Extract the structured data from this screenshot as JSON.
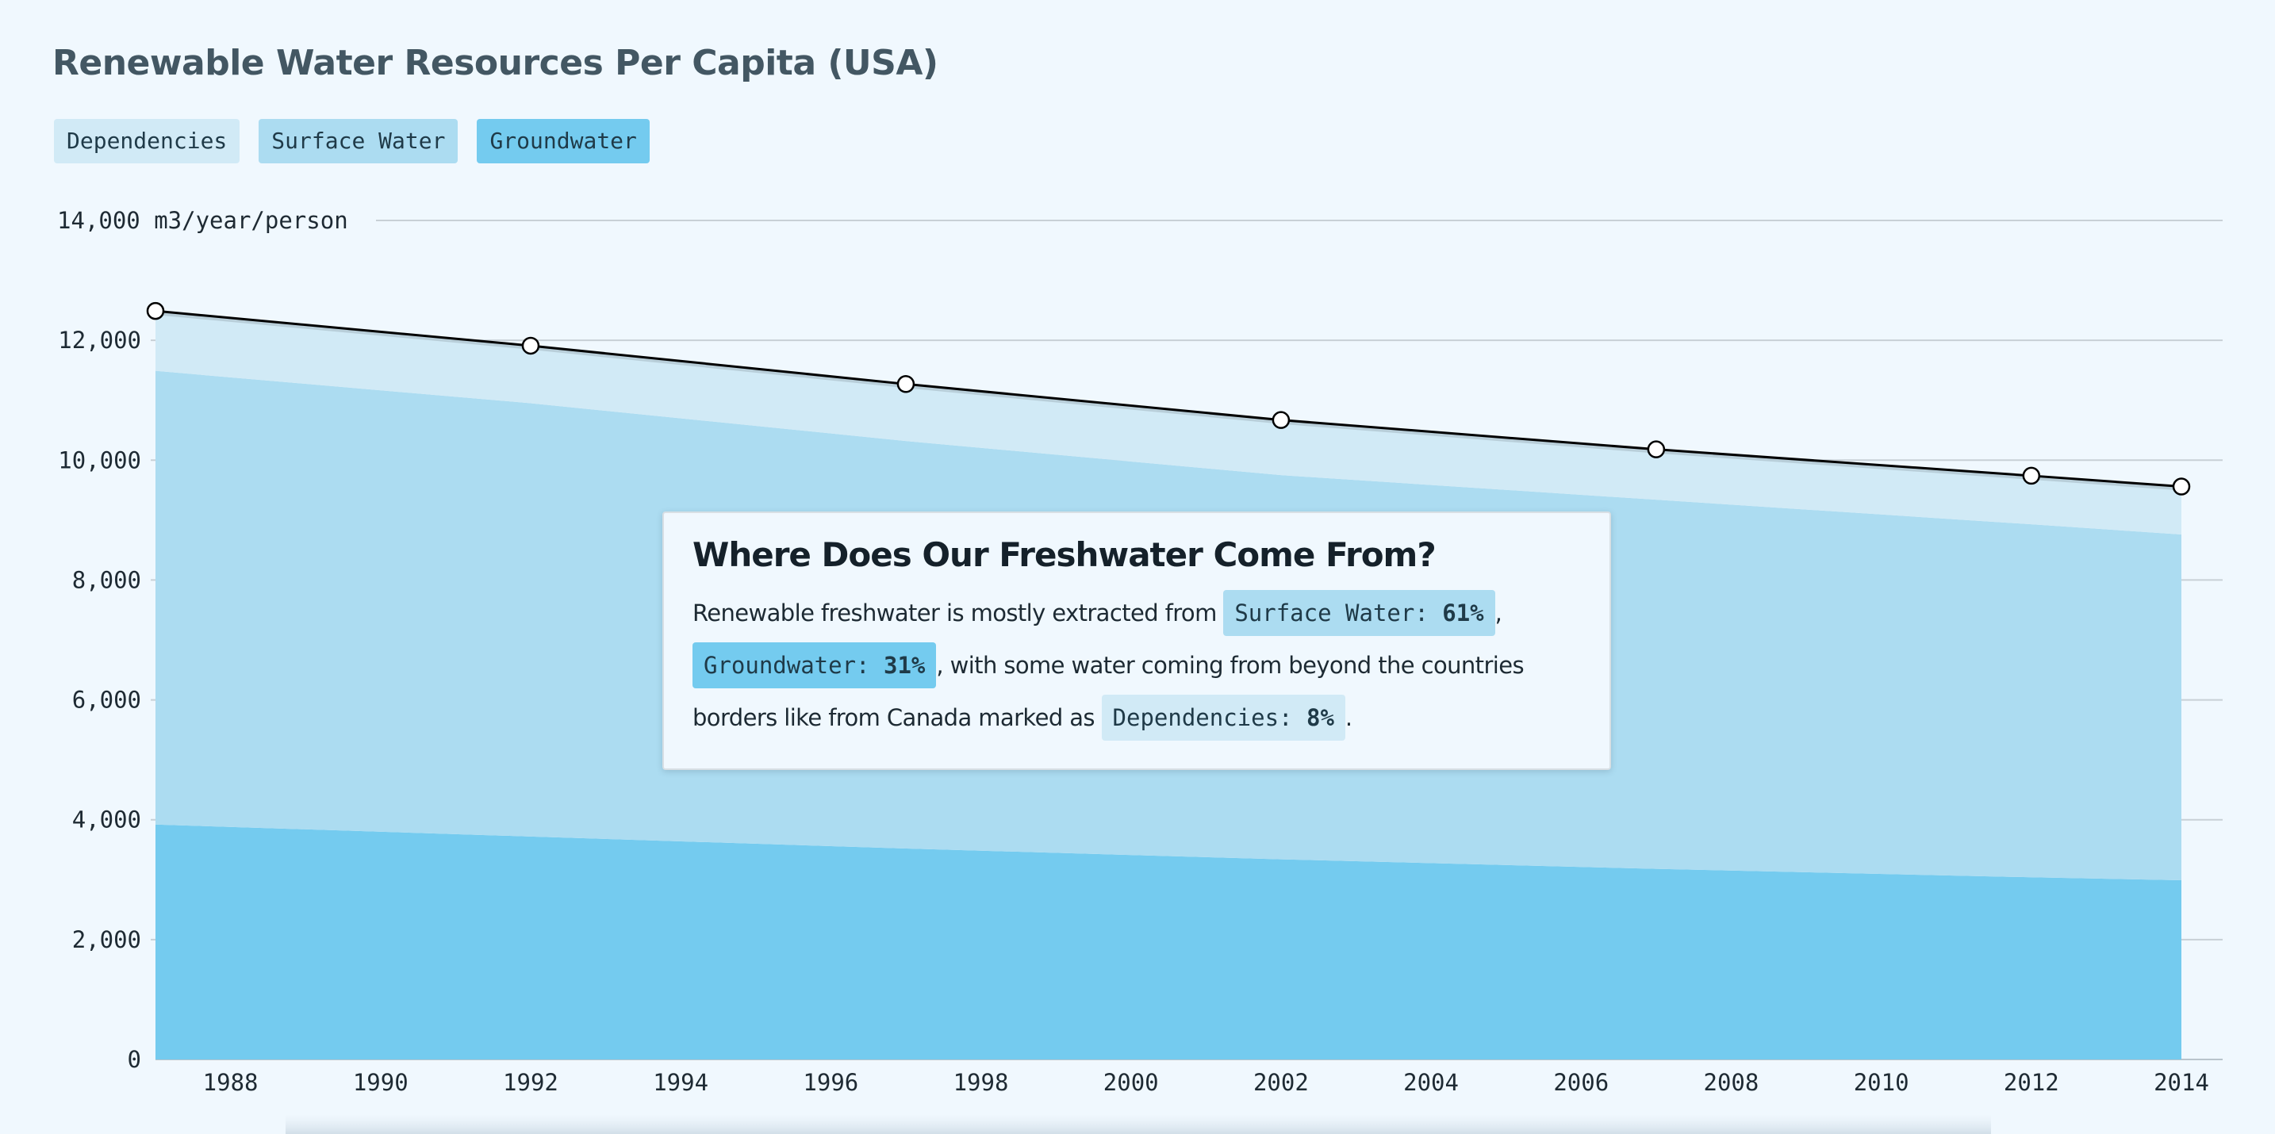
{
  "title": "Renewable Water Resources Per Capita (USA)",
  "colors": {
    "background": "#f0f8fe",
    "dependencies": "#d1eaf6",
    "surface_water": "#acdcf1",
    "groundwater": "#74cbef",
    "total_line": "#000000",
    "grid": "#c8d0d6"
  },
  "legend": [
    {
      "label": "Dependencies",
      "color": "#d1eaf6"
    },
    {
      "label": "Surface Water",
      "color": "#acdcf1"
    },
    {
      "label": "Groundwater",
      "color": "#74cbef"
    }
  ],
  "tooltip": {
    "title": "Where Does Our Freshwater Come From?",
    "text_1": "Renewable freshwater is mostly extracted from ",
    "chip_surface_label": "Surface Water: ",
    "chip_surface_value": "61%",
    "text_2": ",",
    "chip_ground_label": "Groundwater: ",
    "chip_ground_value": "31%",
    "text_3": ", with some water coming from beyond the countries borders like from Canada marked as ",
    "chip_dep_label": "Dependencies: ",
    "chip_dep_value": "8%",
    "text_4": "."
  },
  "chart_data": {
    "type": "area",
    "stacked": true,
    "ylabel_unit": "m3/year/person",
    "ylim": [
      0,
      14000
    ],
    "yticks": [
      0,
      2000,
      4000,
      6000,
      8000,
      10000,
      12000,
      14000
    ],
    "ytick_labels": [
      "0",
      "2,000",
      "4,000",
      "6,000",
      "8,000",
      "10,000",
      "12,000",
      "14,000 m3/year/person"
    ],
    "xlim": [
      1987,
      2014
    ],
    "xticks": [
      1988,
      1990,
      1992,
      1994,
      1996,
      1998,
      2000,
      2002,
      2004,
      2006,
      2008,
      2010,
      2012,
      2014
    ],
    "x": [
      1987,
      1992,
      1997,
      2002,
      2007,
      2012,
      2014
    ],
    "series": [
      {
        "name": "Groundwater",
        "values": [
          3920,
          3720,
          3520,
          3340,
          3180,
          3040,
          2990
        ]
      },
      {
        "name": "Surface Water",
        "values": [
          7570,
          7230,
          6800,
          6410,
          6160,
          5890,
          5770
        ]
      },
      {
        "name": "Dependencies",
        "values": [
          1000,
          960,
          950,
          920,
          840,
          810,
          800
        ]
      }
    ],
    "total": [
      12490,
      11910,
      11270,
      10670,
      10180,
      9740,
      9560
    ],
    "grid": true,
    "legend_position": "top-left"
  }
}
